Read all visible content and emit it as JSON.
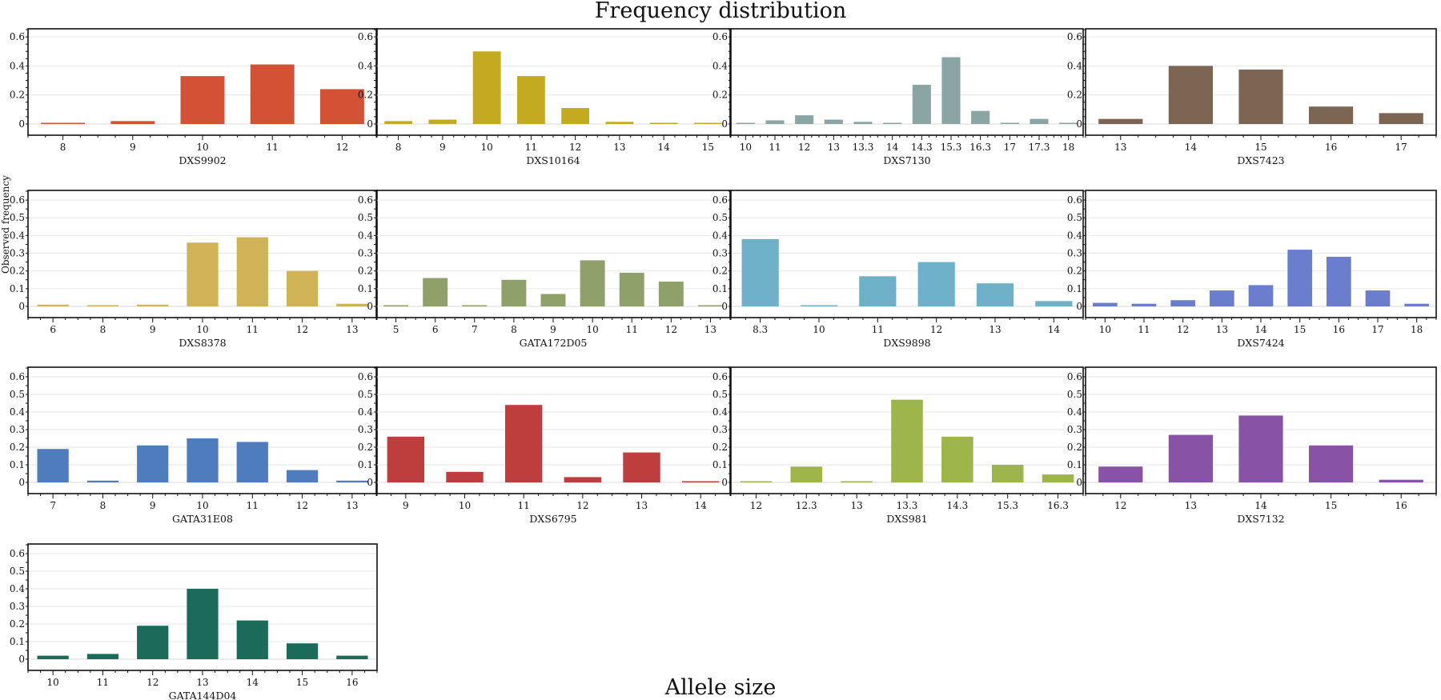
{
  "title": "Frequency distribution",
  "xlabel": "Allele size",
  "ylabel": "Observed frequency",
  "chart_data": [
    {
      "type": "bar",
      "name": "DXS9902",
      "color": "#d35236",
      "categories": [
        "8",
        "9",
        "10",
        "11",
        "12"
      ],
      "values": [
        0.005,
        0.02,
        0.33,
        0.41,
        0.24
      ],
      "yticks": [
        "0",
        "0.2",
        "0.4",
        "0.6"
      ]
    },
    {
      "type": "bar",
      "name": "DXS10164",
      "color": "#c4aa20",
      "categories": [
        "8",
        "9",
        "10",
        "11",
        "12",
        "13",
        "14",
        "15"
      ],
      "values": [
        0.02,
        0.03,
        0.5,
        0.33,
        0.11,
        0.015,
        0.005,
        0.005
      ],
      "yticks": [
        "0",
        "0.2",
        "0.4",
        "0.6"
      ]
    },
    {
      "type": "bar",
      "name": "DXS7130",
      "color": "#8aa5a3",
      "categories": [
        "10",
        "11",
        "12",
        "13",
        "13.3",
        "14",
        "14.3",
        "15.3",
        "16.3",
        "17",
        "17.3",
        "18"
      ],
      "values": [
        0.005,
        0.025,
        0.06,
        0.03,
        0.015,
        0.005,
        0.27,
        0.46,
        0.09,
        0.005,
        0.035,
        0.005
      ],
      "yticks": [
        "0",
        "0.2",
        "0.4",
        "0.6"
      ]
    },
    {
      "type": "bar",
      "name": "DXS7423",
      "color": "#7d6554",
      "categories": [
        "13",
        "14",
        "15",
        "16",
        "17"
      ],
      "values": [
        0.035,
        0.4,
        0.375,
        0.12,
        0.075
      ],
      "yticks": [
        "0",
        "0.2",
        "0.4",
        "0.6"
      ]
    },
    {
      "type": "bar",
      "name": "DXS8378",
      "color": "#cfb356",
      "categories": [
        "6",
        "8",
        "9",
        "10",
        "11",
        "12",
        "13"
      ],
      "values": [
        0.01,
        0.005,
        0.01,
        0.36,
        0.39,
        0.2,
        0.015
      ],
      "yticks": [
        "0",
        "0.1",
        "0.2",
        "0.3",
        "0.4",
        "0.5",
        "0.6"
      ]
    },
    {
      "type": "bar",
      "name": "GATA172D05",
      "color": "#8fa06a",
      "categories": [
        "5",
        "6",
        "7",
        "8",
        "9",
        "10",
        "11",
        "12",
        "13"
      ],
      "values": [
        0.003,
        0.16,
        0.003,
        0.15,
        0.07,
        0.26,
        0.19,
        0.14,
        0.003
      ],
      "yticks": [
        "0",
        "0.1",
        "0.2",
        "0.3",
        "0.4",
        "0.5",
        "0.6"
      ]
    },
    {
      "type": "bar",
      "name": "DXS9898",
      "color": "#6eb0c7",
      "categories": [
        "8.3",
        "10",
        "11",
        "12",
        "13",
        "14"
      ],
      "values": [
        0.38,
        0.003,
        0.17,
        0.25,
        0.13,
        0.03
      ],
      "yticks": [
        "0",
        "0.1",
        "0.2",
        "0.3",
        "0.4",
        "0.5",
        "0.6"
      ]
    },
    {
      "type": "bar",
      "name": "DXS7424",
      "color": "#6a7ecd",
      "categories": [
        "10",
        "11",
        "12",
        "13",
        "14",
        "15",
        "16",
        "17",
        "18"
      ],
      "values": [
        0.02,
        0.015,
        0.035,
        0.09,
        0.12,
        0.32,
        0.28,
        0.09,
        0.015
      ],
      "yticks": [
        "0",
        "0.1",
        "0.2",
        "0.3",
        "0.4",
        "0.5",
        "0.6"
      ]
    },
    {
      "type": "bar",
      "name": "GATA31E08",
      "color": "#4f7cbd",
      "categories": [
        "7",
        "8",
        "9",
        "10",
        "11",
        "12",
        "13"
      ],
      "values": [
        0.19,
        0.01,
        0.21,
        0.25,
        0.23,
        0.07,
        0.01
      ],
      "yticks": [
        "0",
        "0.1",
        "0.2",
        "0.3",
        "0.4",
        "0.5",
        "0.6"
      ]
    },
    {
      "type": "bar",
      "name": "DXS6795",
      "color": "#be3e3e",
      "categories": [
        "9",
        "10",
        "11",
        "12",
        "13",
        "14"
      ],
      "values": [
        0.26,
        0.06,
        0.44,
        0.03,
        0.17,
        0.003
      ],
      "yticks": [
        "0",
        "0.1",
        "0.2",
        "0.3",
        "0.4",
        "0.5",
        "0.6"
      ]
    },
    {
      "type": "bar",
      "name": "DXS981",
      "color": "#9db54a",
      "categories": [
        "12",
        "12.3",
        "13",
        "13.3",
        "14.3",
        "15.3",
        "16.3"
      ],
      "values": [
        0.003,
        0.09,
        0.003,
        0.47,
        0.26,
        0.1,
        0.045
      ],
      "yticks": [
        "0",
        "0.1",
        "0.2",
        "0.3",
        "0.4",
        "0.5",
        "0.6"
      ]
    },
    {
      "type": "bar",
      "name": "DXS7132",
      "color": "#8853a6",
      "categories": [
        "12",
        "13",
        "14",
        "15",
        "16"
      ],
      "values": [
        0.09,
        0.27,
        0.38,
        0.21,
        0.015
      ],
      "yticks": [
        "0",
        "0.1",
        "0.2",
        "0.3",
        "0.4",
        "0.5",
        "0.6"
      ]
    },
    {
      "type": "bar",
      "name": "GATA144D04",
      "color": "#1c6a5a",
      "categories": [
        "10",
        "11",
        "12",
        "13",
        "14",
        "15",
        "16"
      ],
      "values": [
        0.02,
        0.03,
        0.19,
        0.4,
        0.22,
        0.09,
        0.02
      ],
      "yticks": [
        "0",
        "0.1",
        "0.2",
        "0.3",
        "0.4",
        "0.5",
        "0.6"
      ]
    }
  ]
}
